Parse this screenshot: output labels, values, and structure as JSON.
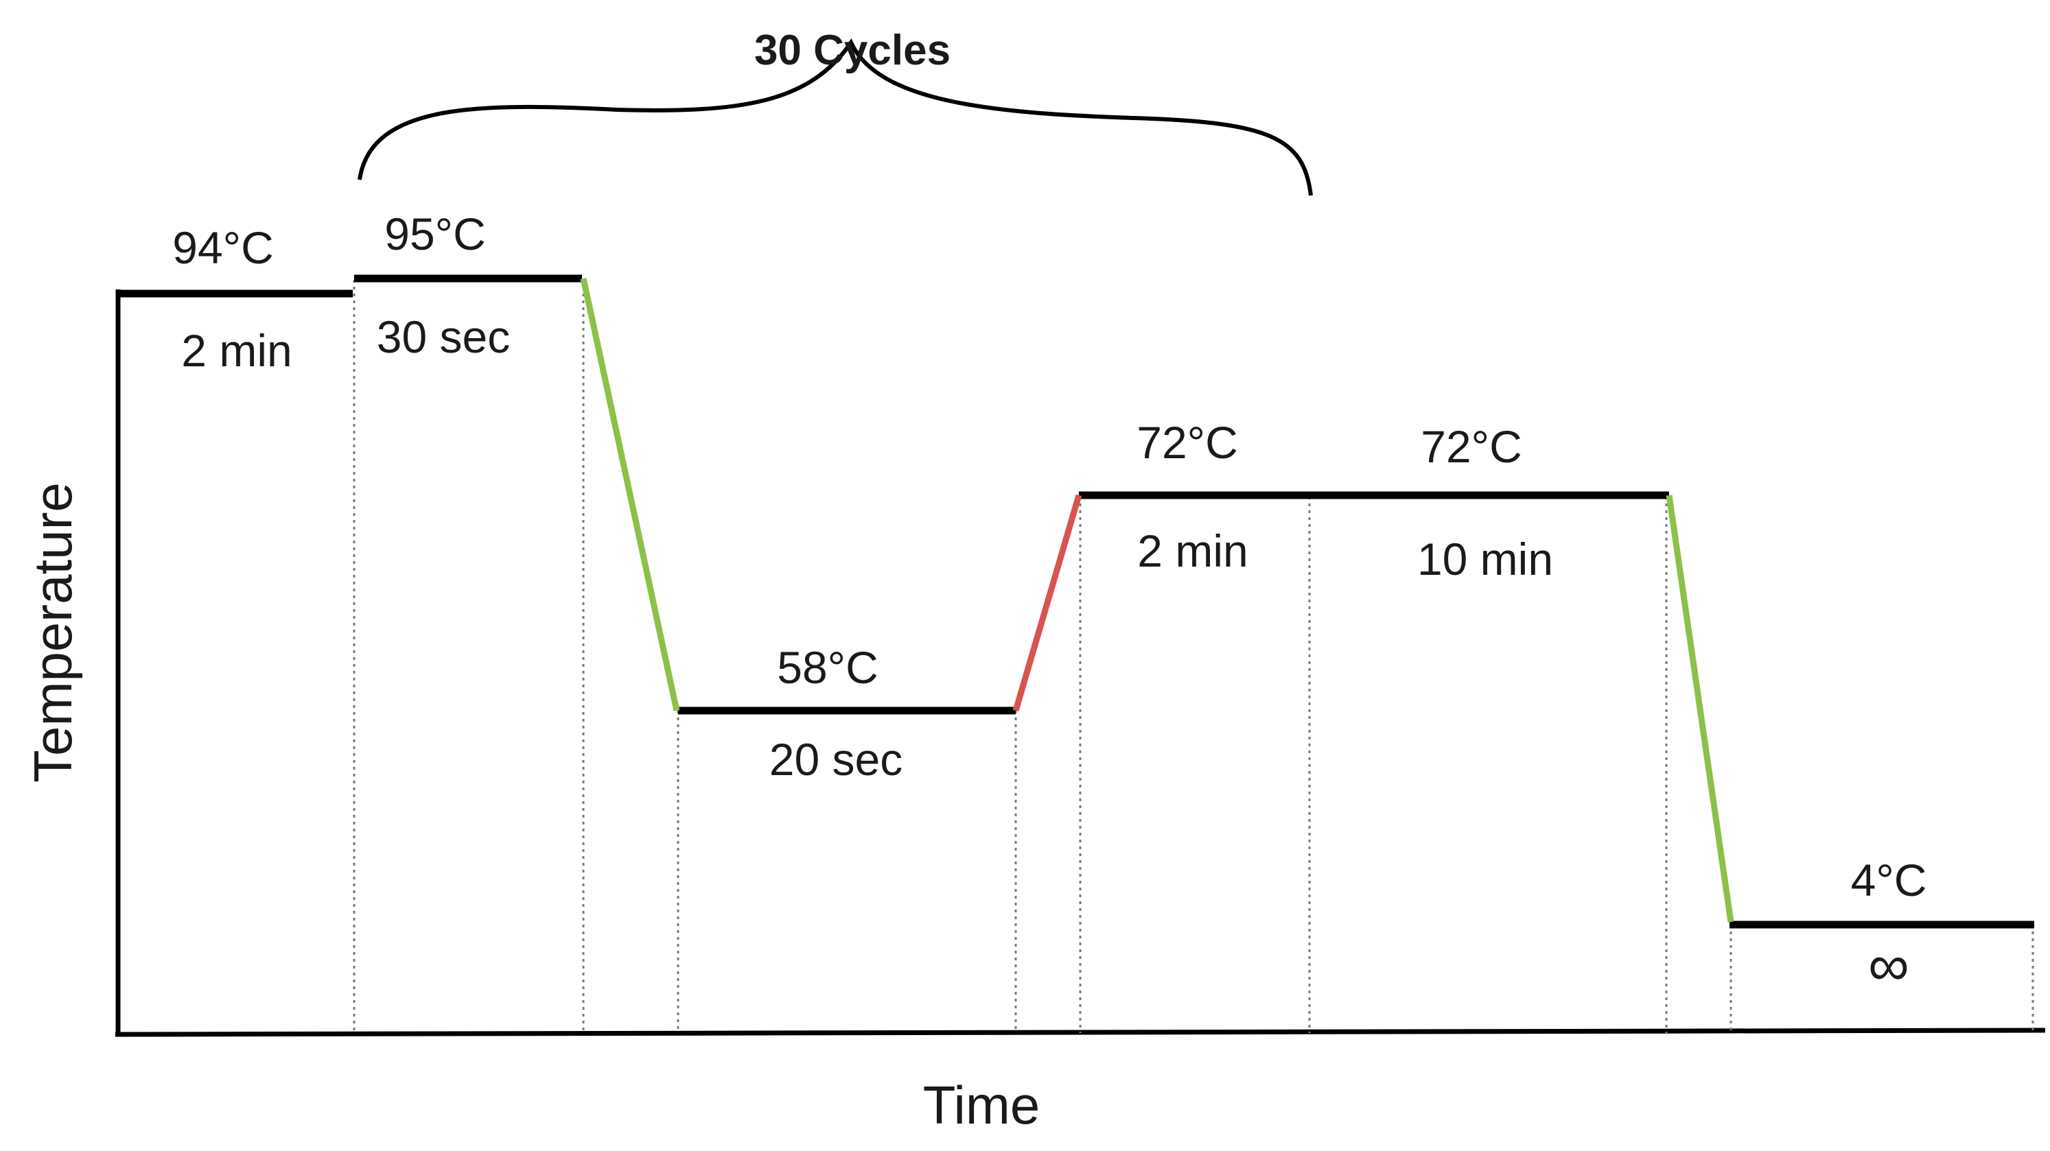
{
  "cycles_label": "30 Cycles",
  "axes": {
    "x_label": "Time",
    "y_label": "Temperature"
  },
  "steps": [
    {
      "temperature": "94°C",
      "duration": "2 min"
    },
    {
      "temperature": "95°C",
      "duration": "30 sec"
    },
    {
      "temperature": "58°C",
      "duration": "20 sec"
    },
    {
      "temperature": "72°C",
      "duration": "2 min"
    },
    {
      "temperature": "72°C",
      "duration": "10 min"
    },
    {
      "temperature": "4°C",
      "duration": "∞"
    }
  ],
  "colors": {
    "plateau": "#000000",
    "cooling_ramp": "#8dc048",
    "heating_ramp": "#d9534f",
    "divider": "#7a7a7a"
  }
}
